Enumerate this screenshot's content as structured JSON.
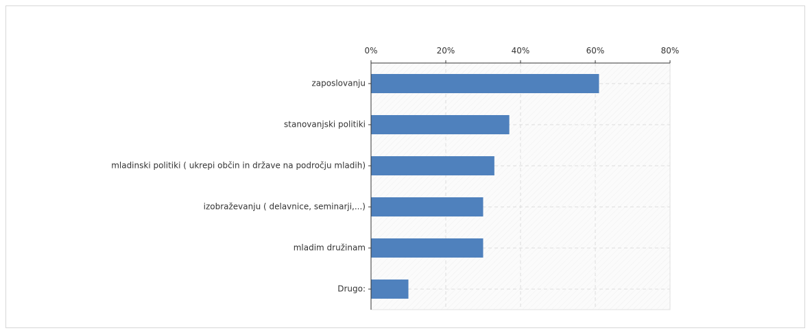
{
  "chart_data": {
    "type": "bar",
    "orientation": "horizontal",
    "categories": [
      "zaposlovanju",
      "stanovanjski politiki",
      "mladinski politiki ( ukrepi občin in države na področju mladih)",
      "izobraževanju ( delavnice, seminarji,...)",
      "mladim družinam",
      "Drugo:"
    ],
    "values": [
      61,
      37,
      33,
      30,
      30,
      10
    ],
    "color": "#4f81bd",
    "xlim": [
      0,
      80
    ],
    "xticks": [
      {
        "value": 0,
        "label": "0%"
      },
      {
        "value": 20,
        "label": "20%"
      },
      {
        "value": 40,
        "label": "40%"
      },
      {
        "value": 60,
        "label": "60%"
      },
      {
        "value": 80,
        "label": "80%"
      }
    ],
    "grid": true
  }
}
